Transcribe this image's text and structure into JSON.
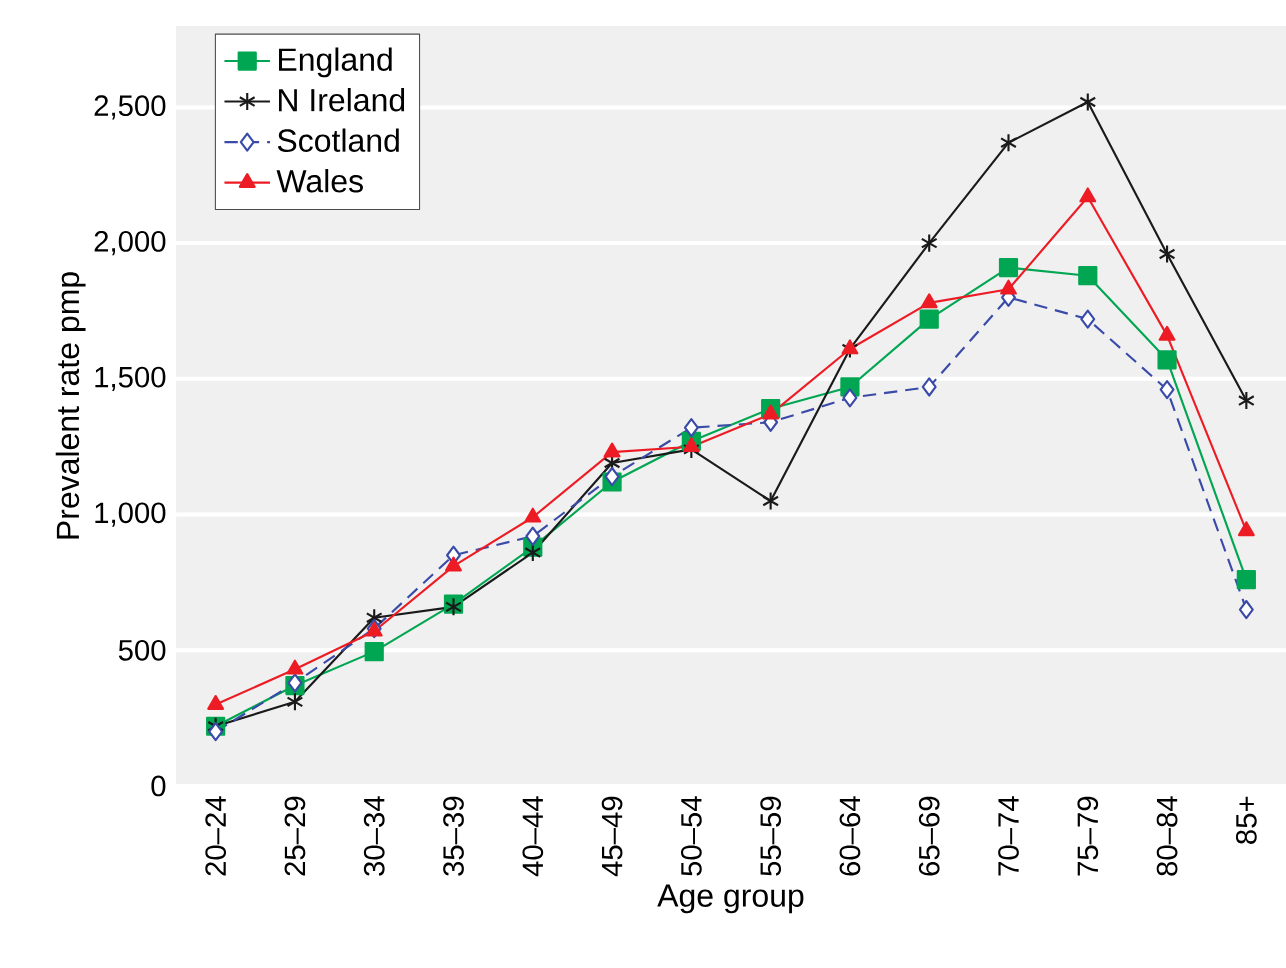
{
  "chart_data": {
    "type": "line",
    "xlabel": "Age group",
    "ylabel": "Prevalent rate pmp",
    "categories": [
      "20–24",
      "25–29",
      "30–34",
      "35–39",
      "40–44",
      "45–49",
      "50–54",
      "55–59",
      "60–64",
      "65–69",
      "70–74",
      "75–79",
      "80–84",
      "85+"
    ],
    "series": [
      {
        "name": "England",
        "color": "#00a651",
        "marker": "square",
        "line_style": "solid",
        "values": [
          220,
          370,
          495,
          670,
          880,
          1120,
          1270,
          1390,
          1470,
          1720,
          1910,
          1880,
          1570,
          760
        ]
      },
      {
        "name": "N Ireland",
        "color": "#1a1a1a",
        "marker": "cross",
        "line_style": "solid",
        "values": [
          220,
          310,
          620,
          660,
          860,
          1190,
          1240,
          1050,
          1610,
          2000,
          2370,
          2520,
          1960,
          1420
        ]
      },
      {
        "name": "Scotland",
        "color": "#3a4aa8",
        "marker": "diamond",
        "line_style": "dashed",
        "values": [
          200,
          380,
          580,
          850,
          920,
          1140,
          1320,
          1340,
          1430,
          1470,
          1800,
          1720,
          1460,
          650
        ]
      },
      {
        "name": "Wales",
        "color": "#ed1c24",
        "marker": "triangle",
        "line_style": "solid",
        "values": [
          300,
          430,
          570,
          810,
          990,
          1230,
          1250,
          1370,
          1610,
          1780,
          1830,
          2170,
          1660,
          940
        ]
      }
    ],
    "ylim": [
      0,
      2800
    ],
    "yticks": [
      0,
      {
        "value": 500,
        "label": "500"
      },
      {
        "value": 1000,
        "label": "1,000"
      },
      {
        "value": 1500,
        "label": "1,500"
      },
      {
        "value": 2000,
        "label": "2,000"
      },
      {
        "value": 2500,
        "label": "2,500"
      }
    ],
    "grid": "y",
    "legend": "top left"
  }
}
